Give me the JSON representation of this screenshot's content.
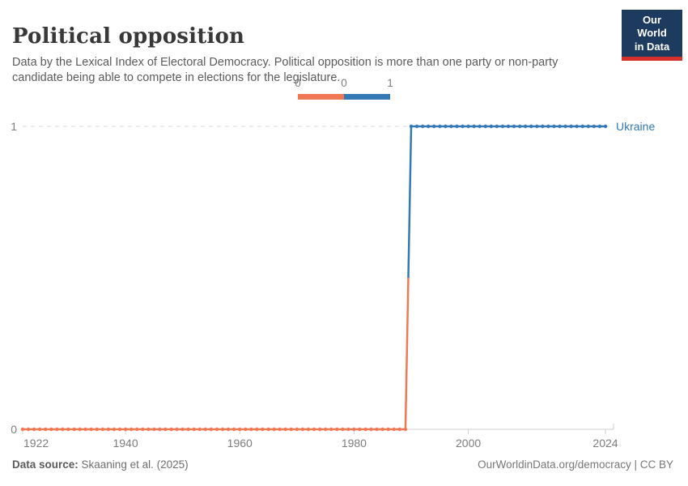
{
  "header": {
    "title": "Political opposition",
    "subtitle": "Data by the Lexical Index of Electoral Democracy. Political opposition is more than one party or non-party candidate being able to compete in elections for the legislature.",
    "logo": {
      "line1": "Our World",
      "line2": "in Data",
      "bg_color": "#1d3a5f",
      "bar_color": "#d6302c"
    }
  },
  "legend": {
    "edge_labels": [
      "0",
      "0",
      "1"
    ],
    "bins": [
      {
        "value": 0,
        "color": "#f07855"
      },
      {
        "value": 1,
        "color": "#3478b4"
      }
    ]
  },
  "chart_data": {
    "type": "line",
    "title": "Political opposition",
    "entity": "Ukraine",
    "x_range": [
      1922,
      2024
    ],
    "x_ticks": [
      1922,
      1940,
      1960,
      1980,
      2000,
      2024
    ],
    "y_ticks": [
      0,
      1
    ],
    "ylim": [
      0,
      1
    ],
    "grid": "dashed horizontal gridline at y=1, solid baseline at y=0",
    "legend_position": "top-center",
    "series": [
      {
        "name": "Ukraine",
        "label_color": "#3478b4",
        "steps": [
          {
            "from_year": 1922,
            "to_year": 1989,
            "value": 0,
            "color": "#f07855"
          },
          {
            "from_year": 1990,
            "to_year": 2024,
            "value": 1,
            "color": "#3478b4"
          }
        ],
        "note": "Yearly points; 0 for every year 1922-1989 (orange), 1 for every year 1990-2024 (blue); near-vertical connector between 1989 and 1990 colored orange below midpoint and blue above"
      }
    ],
    "colors": {
      "value0": "#f07855",
      "value1": "#3478b4",
      "grid": "#d9d9d9",
      "axis": "#cfcfcf",
      "tick_text": "#7d7d7d"
    }
  },
  "footer": {
    "source_label": "Data source:",
    "source_value": " Skaaning et al. (2025)",
    "credit": "OurWorldinData.org/democracy | CC BY"
  }
}
